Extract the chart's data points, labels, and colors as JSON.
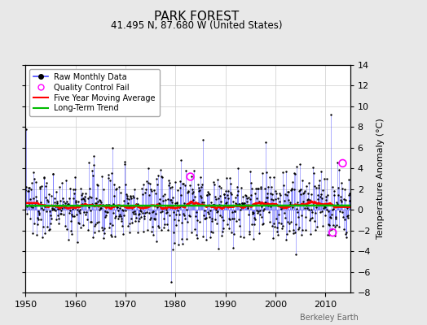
{
  "title": "PARK FOREST",
  "subtitle": "41.495 N, 87.680 W (United States)",
  "ylabel": "Temperature Anomaly (°C)",
  "credit": "Berkeley Earth",
  "xlim": [
    1950,
    2015
  ],
  "ylim": [
    -8,
    14
  ],
  "yticks": [
    -8,
    -6,
    -4,
    -2,
    0,
    2,
    4,
    6,
    8,
    10,
    12,
    14
  ],
  "xticks": [
    1950,
    1960,
    1970,
    1980,
    1990,
    2000,
    2010
  ],
  "bg_color": "#e8e8e8",
  "plot_bg_color": "#ffffff",
  "line_color": "#4444ff",
  "dot_color": "#000000",
  "ma_color": "#ff0000",
  "trend_color": "#00bb00",
  "qc_color": "#ff00ff",
  "seed": 137
}
